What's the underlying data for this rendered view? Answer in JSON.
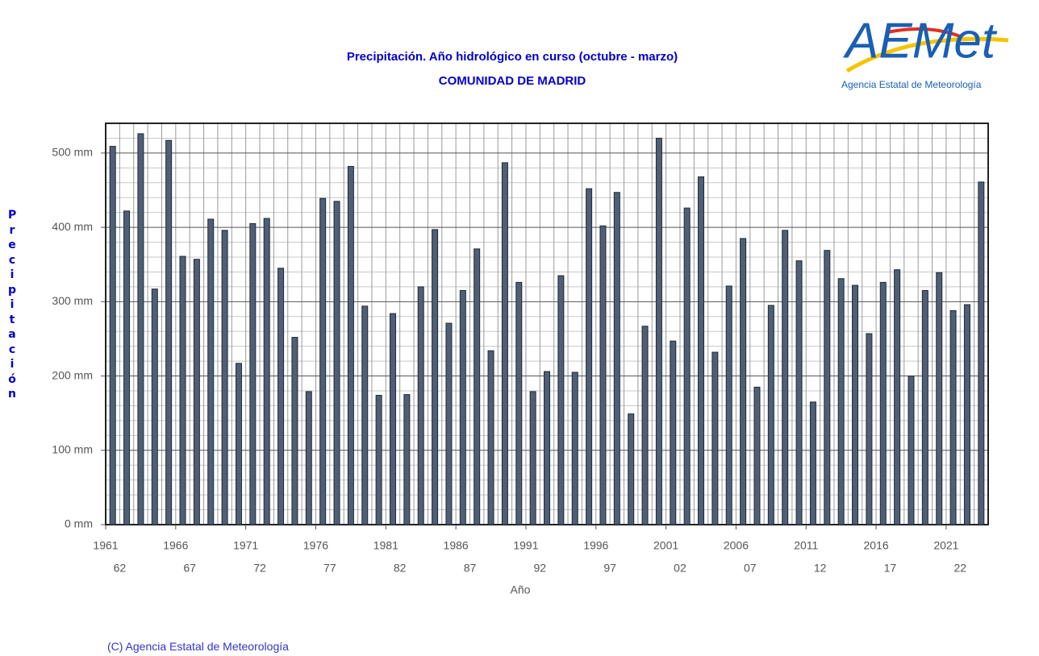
{
  "chart_data": {
    "type": "bar",
    "title": "Precipitación. Año hidrológico en curso (octubre - marzo)",
    "subtitle": "COMUNIDAD DE MADRID",
    "x_label": "Año",
    "y_label": "Precipitación",
    "categories": [
      "1961",
      null,
      null,
      null,
      null,
      "1966",
      null,
      null,
      null,
      null,
      "1971",
      null,
      null,
      null,
      null,
      "1976",
      null,
      null,
      null,
      null,
      "1981",
      null,
      null,
      null,
      null,
      "1986",
      null,
      null,
      null,
      null,
      "1991",
      null,
      null,
      null,
      null,
      "1996",
      null,
      null,
      null,
      null,
      "2001",
      null,
      null,
      null,
      null,
      "2006",
      null,
      null,
      null,
      null,
      "2011",
      null,
      null,
      null,
      null,
      "2016",
      null,
      null,
      null,
      null,
      "2021",
      null,
      null
    ],
    "category_end_years": [
      "62",
      null,
      null,
      null,
      null,
      "67",
      null,
      null,
      null,
      null,
      "72",
      null,
      null,
      null,
      null,
      "77",
      null,
      null,
      null,
      null,
      "82",
      null,
      null,
      null,
      null,
      "87",
      null,
      null,
      null,
      null,
      "92",
      null,
      null,
      null,
      null,
      "97",
      null,
      null,
      null,
      null,
      "02",
      null,
      null,
      null,
      null,
      "07",
      null,
      null,
      null,
      null,
      "12",
      null,
      null,
      null,
      null,
      "17",
      null,
      null,
      null,
      null,
      "22",
      null,
      null
    ],
    "values": [
      509,
      422,
      526,
      317,
      517,
      361,
      357,
      411,
      396,
      217,
      405,
      412,
      345,
      252,
      179,
      439,
      435,
      482,
      294,
      174,
      284,
      175,
      320,
      397,
      271,
      315,
      371,
      234,
      487,
      326,
      179,
      206,
      335,
      205,
      452,
      402,
      447,
      149,
      267,
      520,
      247,
      426,
      468,
      232,
      321,
      385,
      185,
      295,
      396,
      355,
      165,
      369,
      331,
      322,
      257,
      326,
      343,
      200,
      315,
      339,
      288,
      296,
      461
    ],
    "color": "#4f5f75",
    "ylim": [
      0,
      540
    ],
    "yticks": [
      {
        "value": 0,
        "label": "0 mm"
      },
      {
        "value": 100,
        "label": "100 mm"
      },
      {
        "value": 200,
        "label": "200 mm"
      },
      {
        "value": 300,
        "label": "300 mm"
      },
      {
        "value": 400,
        "label": "400 mm"
      },
      {
        "value": 500,
        "label": "500 mm"
      }
    ],
    "minor_yticks": [
      20,
      40,
      60,
      80,
      120,
      140,
      160,
      180,
      220,
      240,
      260,
      280,
      320,
      340,
      360,
      380,
      420,
      440,
      460,
      480,
      520
    ],
    "grid": true
  },
  "logo": {
    "mark": "AEMet",
    "text": "Agencia Estatal de Meteorología"
  },
  "footer": "(C) Agencia Estatal de Meteorología"
}
